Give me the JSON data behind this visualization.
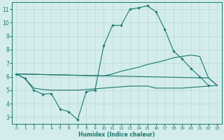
{
  "xlabel": "Humidex (Indice chaleur)",
  "x_values": [
    0,
    1,
    2,
    3,
    4,
    5,
    6,
    7,
    8,
    9,
    10,
    11,
    12,
    13,
    14,
    15,
    16,
    17,
    18,
    19,
    20,
    21,
    22,
    23
  ],
  "line_main_y": [
    6.2,
    5.85,
    5.0,
    4.7,
    4.75,
    3.6,
    3.4,
    2.8,
    4.9,
    5.0,
    8.3,
    9.8,
    9.8,
    11.0,
    11.1,
    11.25,
    10.8,
    9.5,
    7.9,
    7.3,
    6.6,
    6.0,
    5.35,
    null
  ],
  "line_diag_y": [
    6.2,
    null,
    null,
    null,
    null,
    null,
    null,
    null,
    null,
    null,
    null,
    null,
    null,
    null,
    null,
    null,
    null,
    null,
    null,
    null,
    null,
    null,
    5.9,
    5.35
  ],
  "line_flat_y": [
    6.2,
    5.85,
    5.15,
    5.05,
    5.0,
    5.0,
    5.0,
    5.0,
    5.05,
    5.1,
    5.15,
    5.2,
    5.25,
    5.3,
    5.3,
    5.3,
    5.15,
    5.15,
    5.15,
    5.15,
    5.2,
    5.25,
    5.3,
    5.35
  ],
  "line_upper_y": [
    6.2,
    null,
    null,
    null,
    null,
    null,
    null,
    null,
    null,
    null,
    6.05,
    6.2,
    6.4,
    6.55,
    6.7,
    6.9,
    7.05,
    7.2,
    7.4,
    7.5,
    7.6,
    7.5,
    5.9,
    5.35
  ],
  "line_color": "#1a7a6e",
  "bg_color": "#d4ecec",
  "grid_color": "#b8d8d8",
  "xlim": [
    -0.5,
    23.5
  ],
  "ylim": [
    2.5,
    11.5
  ],
  "yticks": [
    3,
    4,
    5,
    6,
    7,
    8,
    9,
    10,
    11
  ],
  "xticks": [
    0,
    1,
    2,
    3,
    4,
    5,
    6,
    7,
    8,
    9,
    10,
    11,
    12,
    13,
    14,
    15,
    16,
    17,
    18,
    19,
    20,
    21,
    22,
    23
  ]
}
